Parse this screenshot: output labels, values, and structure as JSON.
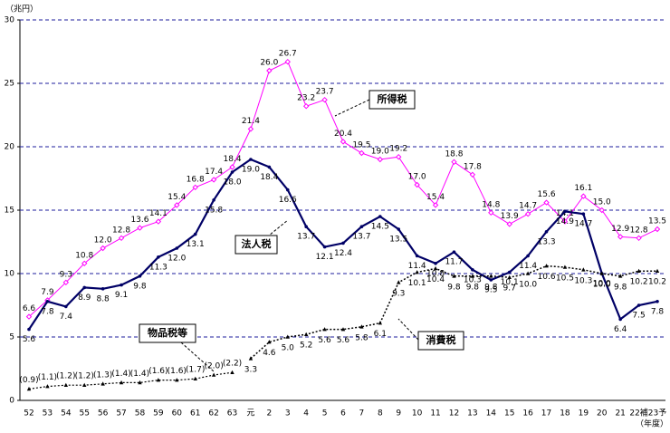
{
  "chart_data": {
    "type": "line",
    "y_unit": "（兆円）",
    "x_unit": "（年度）",
    "categories": [
      "52",
      "53",
      "54",
      "55",
      "56",
      "57",
      "58",
      "59",
      "60",
      "61",
      "62",
      "63",
      "元",
      "2",
      "3",
      "4",
      "5",
      "6",
      "7",
      "8",
      "9",
      "10",
      "11",
      "12",
      "13",
      "14",
      "15",
      "16",
      "17",
      "18",
      "19",
      "20",
      "21",
      "22補",
      "23予"
    ],
    "ylim": [
      0,
      30
    ],
    "yticks": [
      0,
      5,
      10,
      15,
      20,
      25,
      30
    ],
    "grid": true,
    "series": [
      {
        "name": "所得税",
        "color": "#ff00ff",
        "values": [
          6.6,
          7.9,
          9.3,
          10.8,
          12.0,
          12.8,
          13.6,
          14.1,
          15.4,
          16.8,
          17.4,
          18.4,
          21.4,
          26.0,
          26.7,
          23.2,
          23.7,
          20.4,
          19.5,
          19.0,
          19.2,
          17.0,
          15.4,
          18.8,
          17.8,
          14.8,
          13.9,
          14.7,
          15.6,
          14.1,
          16.1,
          15.0,
          12.9,
          12.8,
          13.5
        ],
        "value_labels": [
          "6.6",
          "7.9",
          "9.3",
          "10.8",
          "12.0",
          "12.8",
          "13.6",
          "14.1",
          "15.4",
          "16.8",
          "17.4",
          "18.4",
          "21.4",
          "26.0",
          "26.7",
          "23.2",
          "23.7",
          "20.4",
          "19.5",
          "19.0",
          "19.2",
          "17.0",
          "15.4",
          "18.8",
          "17.8",
          "14.8",
          "13.9",
          "14.7",
          "15.6",
          "14.1",
          "16.1",
          "15.0",
          "12.9",
          "12.8",
          "13.5"
        ]
      },
      {
        "name": "法人税",
        "color": "#000066",
        "values": [
          5.6,
          7.8,
          7.4,
          8.9,
          8.8,
          9.1,
          9.8,
          11.3,
          12.0,
          13.1,
          15.8,
          18.0,
          19.0,
          18.4,
          16.6,
          13.7,
          12.1,
          12.4,
          13.7,
          14.5,
          13.5,
          11.4,
          10.8,
          11.7,
          10.3,
          9.5,
          10.1,
          11.4,
          13.3,
          14.9,
          14.7,
          10.0,
          6.4,
          7.5,
          7.8
        ],
        "value_labels": [
          "5.6",
          "7.8",
          "7.4",
          "8.9",
          "8.8",
          "9.1",
          "9.8",
          "11.3",
          "12.0",
          "13.1",
          "15.8",
          "18.0",
          "19.0",
          "18.4",
          "16.6",
          "13.7",
          "12.1",
          "12.4",
          "13.7",
          "14.5",
          "13.5",
          "11.4",
          "10.8",
          "11.7",
          "10.3",
          "9.5",
          "10.1",
          "11.4",
          "13.3",
          "14.9",
          "14.7",
          "10.0",
          "6.4",
          "7.5",
          "7.8"
        ]
      },
      {
        "name": "物品税等",
        "color": "#000000",
        "values": [
          0.9,
          1.1,
          1.2,
          1.2,
          1.3,
          1.4,
          1.4,
          1.6,
          1.6,
          1.7,
          2.0,
          2.2,
          null,
          null,
          null,
          null,
          null,
          null,
          null,
          null,
          null,
          null,
          null,
          null,
          null,
          null,
          null,
          null,
          null,
          null,
          null,
          null,
          null,
          null,
          null
        ],
        "value_labels": [
          "(0.9)",
          "(1.1)",
          "(1.2)",
          "(1.2)",
          "(1.3)",
          "(1.4)",
          "(1.4)",
          "(1.6)",
          "(1.6)",
          "(1.7)",
          "(2.0)",
          "(2.2)",
          null,
          null,
          null,
          null,
          null,
          null,
          null,
          null,
          null,
          null,
          null,
          null,
          null,
          null,
          null,
          null,
          null,
          null,
          null,
          null,
          null,
          null,
          null
        ]
      },
      {
        "name": "消費税",
        "color": "#000000",
        "values": [
          null,
          null,
          null,
          null,
          null,
          null,
          null,
          null,
          null,
          null,
          null,
          null,
          3.3,
          4.6,
          5.0,
          5.2,
          5.6,
          5.6,
          5.8,
          6.1,
          9.3,
          10.1,
          10.4,
          9.8,
          9.8,
          9.8,
          9.7,
          10.0,
          10.6,
          10.5,
          10.3,
          10.0,
          9.8,
          10.2,
          10.2
        ],
        "value_labels": [
          null,
          null,
          null,
          null,
          null,
          null,
          null,
          null,
          null,
          null,
          null,
          null,
          "3.3",
          "4.6",
          "5.0",
          "5.2",
          "5.6",
          "5.6",
          "5.8",
          "6.1",
          "9.3",
          "10.1",
          "10.4",
          "9.8",
          "9.8",
          "9.8",
          "9.7",
          "10.0",
          "10.6",
          "10.5",
          "10.3",
          "10.0",
          "9.8",
          "10.2",
          "10.2"
        ]
      }
    ]
  }
}
